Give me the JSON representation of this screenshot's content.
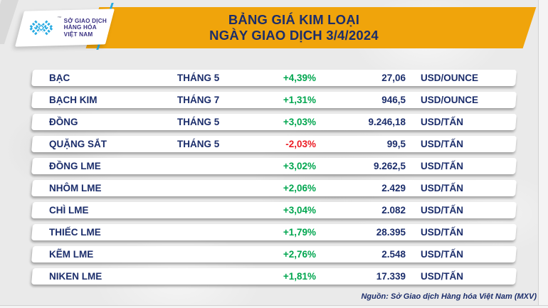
{
  "header": {
    "title_line1": "BẢNG GIÁ KIM LOẠI",
    "title_line2": "NGÀY GIAO DỊCH 3/4/2024"
  },
  "logo": {
    "line1": "SỞ GIAO DỊCH",
    "line2": "HÀNG HÓA",
    "line3": "VIỆT NAM",
    "trademark": "™"
  },
  "table": {
    "rows": [
      {
        "name": "BẠC",
        "month": "THÁNG 5",
        "change": "+4,39%",
        "price": "27,06",
        "unit": "USD/OUNCE"
      },
      {
        "name": "BẠCH KIM",
        "month": "THÁNG 7",
        "change": "+1,31%",
        "price": "946,5",
        "unit": "USD/OUNCE"
      },
      {
        "name": "ĐỒNG",
        "month": "THÁNG 5",
        "change": "+3,03%",
        "price": "9.246,18",
        "unit": "USD/TẤN"
      },
      {
        "name": "QUẶNG SẮT",
        "month": "THÁNG 5",
        "change": "-2,03%",
        "price": "99,5",
        "unit": "USD/TẤN"
      },
      {
        "name": "ĐỒNG LME",
        "month": "",
        "change": "+3,02%",
        "price": "9.262,5",
        "unit": "USD/TẤN"
      },
      {
        "name": "NHÔM LME",
        "month": "",
        "change": "+2,06%",
        "price": "2.429",
        "unit": "USD/TẤN"
      },
      {
        "name": "CHÌ LME",
        "month": "",
        "change": "+3,04%",
        "price": "2.082",
        "unit": "USD/TẤN"
      },
      {
        "name": "THIẾC LME",
        "month": "",
        "change": "+1,79%",
        "price": "28.395",
        "unit": "USD/TẤN"
      },
      {
        "name": "KẼM LME",
        "month": "",
        "change": "+2,76%",
        "price": "2.548",
        "unit": "USD/TẤN"
      },
      {
        "name": "NIKEN LME",
        "month": "",
        "change": "+1,81%",
        "price": "17.339",
        "unit": "USD/TẤN"
      }
    ]
  },
  "footer": {
    "source": "Nguồn: Sở Giao dịch Hàng hóa Việt Nam (MXV)"
  },
  "colors": {
    "banner_yellow": "#F0A40B",
    "navy": "#1B2D6B",
    "green_up": "#00A64F",
    "red_down": "#EC1C24",
    "cyan_accent": "#29ABE2",
    "logo_purple": "#3A3182"
  },
  "chart_data": {
    "type": "table",
    "title": "BẢNG GIÁ KIM LOẠI — NGÀY GIAO DỊCH 3/4/2024",
    "columns": [
      "commodity",
      "contract_month",
      "change_percent",
      "price",
      "unit"
    ],
    "rows": [
      [
        "BẠC",
        "THÁNG 5",
        "+4,39%",
        "27,06",
        "USD/OUNCE"
      ],
      [
        "BẠCH KIM",
        "THÁNG 7",
        "+1,31%",
        "946,5",
        "USD/OUNCE"
      ],
      [
        "ĐỒNG",
        "THÁNG 5",
        "+3,03%",
        "9.246,18",
        "USD/TẤN"
      ],
      [
        "QUẶNG SẮT",
        "THÁNG 5",
        "-2,03%",
        "99,5",
        "USD/TẤN"
      ],
      [
        "ĐỒNG LME",
        "",
        "+3,02%",
        "9.262,5",
        "USD/TẤN"
      ],
      [
        "NHÔM LME",
        "",
        "+2,06%",
        "2.429",
        "USD/TẤN"
      ],
      [
        "CHÌ LME",
        "",
        "+3,04%",
        "2.082",
        "USD/TẤN"
      ],
      [
        "THIẾC LME",
        "",
        "+1,79%",
        "28.395",
        "USD/TẤN"
      ],
      [
        "KẼM LME",
        "",
        "+2,76%",
        "2.548",
        "USD/TẤN"
      ],
      [
        "NIKEN LME",
        "",
        "+1,81%",
        "17.339",
        "USD/TẤN"
      ]
    ],
    "source_note": "Nguồn: Sở Giao dịch Hàng hóa Việt Nam (MXV)"
  }
}
